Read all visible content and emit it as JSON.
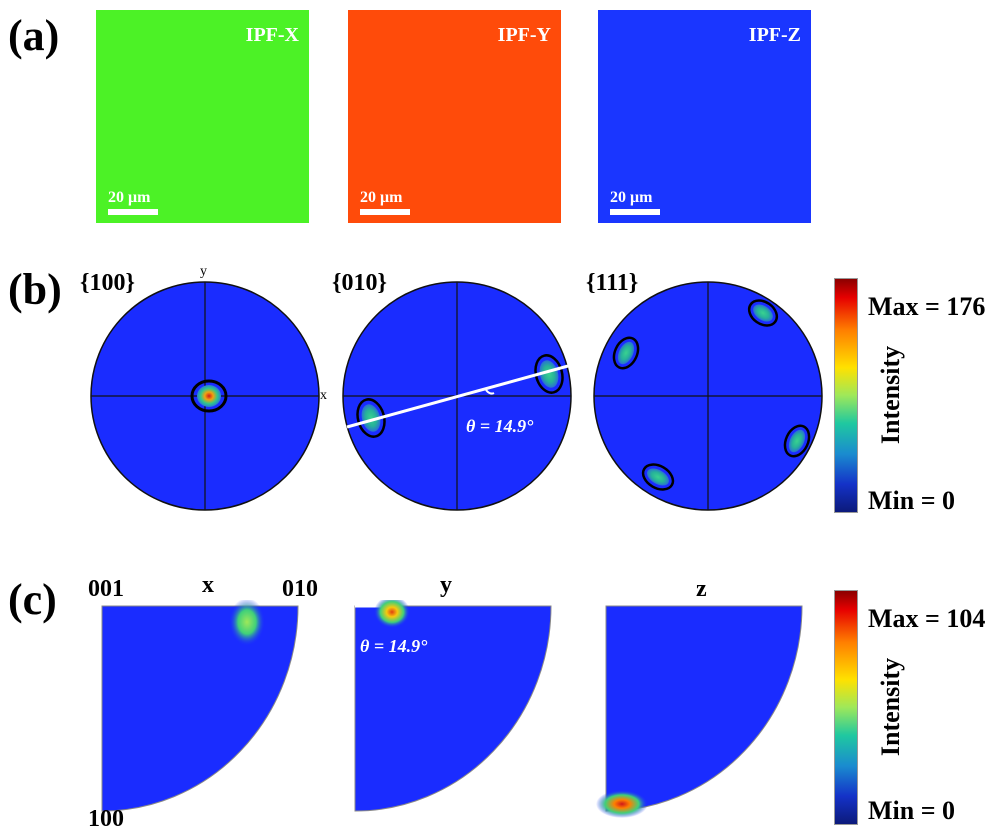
{
  "panels": {
    "a": {
      "label": "(a)",
      "maps": [
        {
          "title": "IPF-X",
          "color": "#4cf226",
          "scale": "20 μm"
        },
        {
          "title": "IPF-Y",
          "color": "#ff4b0a",
          "scale": "20 μm"
        },
        {
          "title": "IPF-Z",
          "color": "#1a36ff",
          "scale": "20 μm"
        }
      ]
    },
    "b": {
      "label": "(b)",
      "pole_figures": [
        {
          "plane": "{100}",
          "axis_x": "x",
          "axis_y": "y"
        },
        {
          "plane": "{010}",
          "angle": "θ = 14.9°"
        },
        {
          "plane": "{111}"
        }
      ],
      "colorbar": {
        "max": "Max = 176",
        "min": "Min = 0",
        "title": "Intensity"
      }
    },
    "c": {
      "label": "(c)",
      "ipfs": [
        {
          "direction": "x",
          "corner_001": "001",
          "corner_010": "010",
          "corner_100": "100"
        },
        {
          "direction": "y",
          "angle": "θ = 14.9°"
        },
        {
          "direction": "z"
        }
      ],
      "colorbar": {
        "max": "Max = 104",
        "min": "Min = 0",
        "title": "Intensity"
      }
    }
  },
  "colors": {
    "field": "#1a2cff",
    "hot": "#d0181b",
    "warm": "#f2a20f",
    "mid": "#2fc78a"
  }
}
